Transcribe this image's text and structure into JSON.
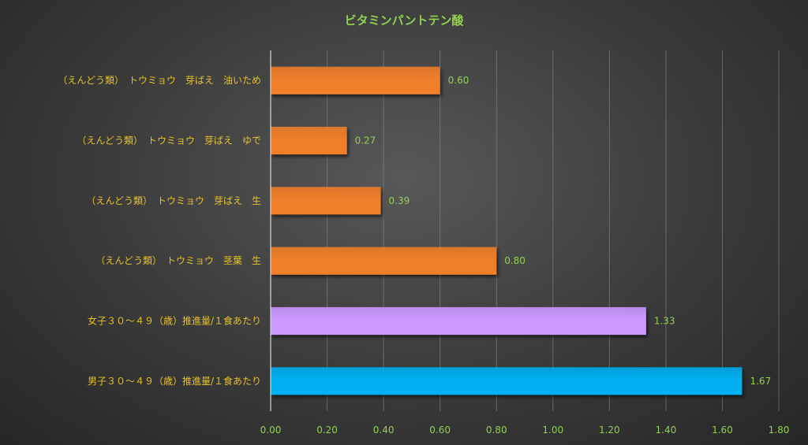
{
  "chart_data": {
    "type": "bar",
    "orientation": "horizontal",
    "title": "ビタミンパントテン酸",
    "categories": [
      "（えんどう類）　トウミョウ　芽ばえ　油いため",
      "（えんどう類）　トウミョウ　芽ばえ　ゆで",
      "（えんどう類）　トウミョウ　芽ばえ　生",
      "（えんどう類）　トウミョウ　茎葉　生",
      "女子３０～４９（歳）推進量/１食あたり",
      "男子３０～４９（歳）推進量/１食あたり"
    ],
    "values": [
      0.6,
      0.27,
      0.39,
      0.8,
      1.33,
      1.67
    ],
    "value_labels": [
      "0.60",
      "0.27",
      "0.39",
      "0.80",
      "1.33",
      "1.67"
    ],
    "bar_colors": [
      "#f07f2a",
      "#f07f2a",
      "#f07f2a",
      "#f07f2a",
      "#cc99ff",
      "#00b0f0"
    ],
    "xlim": [
      0,
      1.8
    ],
    "xticks": [
      "0.00",
      "0.20",
      "0.40",
      "0.60",
      "0.80",
      "1.00",
      "1.20",
      "1.40",
      "1.60",
      "1.80"
    ],
    "grid": true,
    "legend": "none",
    "colors": {
      "background": "#3a3a3a",
      "title": "#92d050",
      "category_text": "#e6c229",
      "tick_text": "#92d050",
      "value_text": "#92d050",
      "gridline": "#8a8a8a"
    }
  }
}
